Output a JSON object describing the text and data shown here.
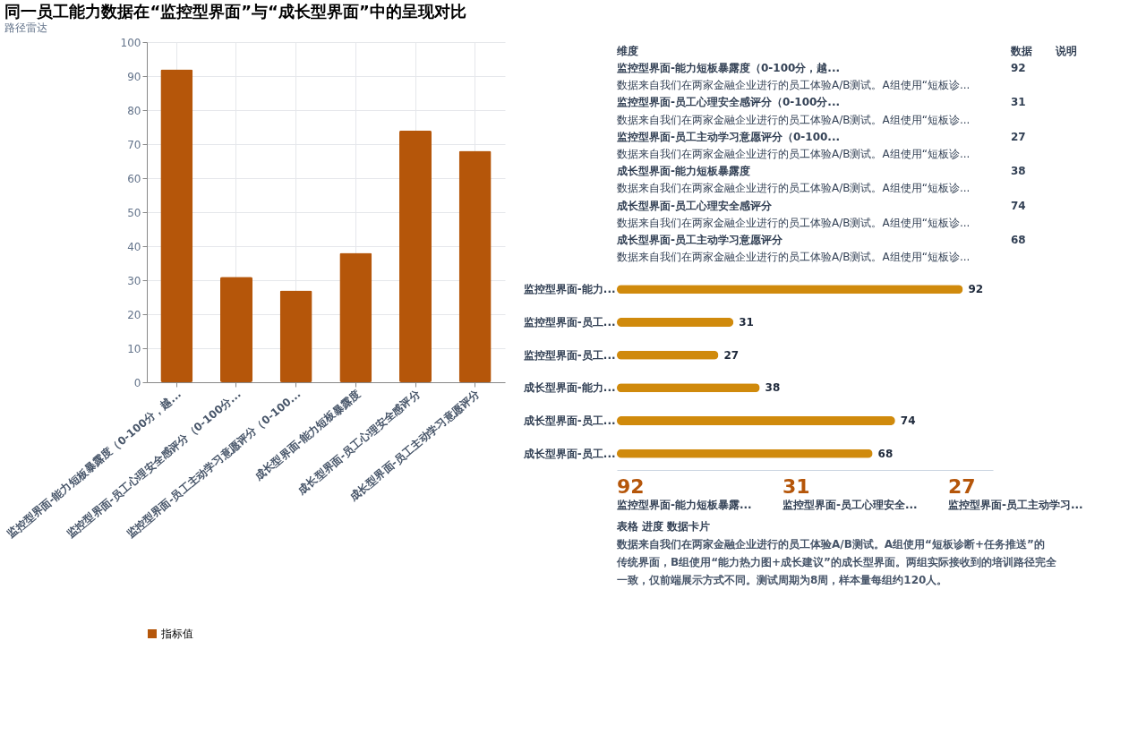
{
  "chart_data": [
    {
      "type": "bar",
      "title": "同一员工能力数据在“监控型界面”与“成长型界面”中的呈现对比",
      "categories": [
        "监控型界面-能力短板暴露度（0-100分，越...",
        "监控型界面-员工心理安全感评分（0-100分...",
        "监控型界面-员工主动学习意愿评分（0-100...",
        "成长型界面-能力短板暴露度",
        "成长型界面-员工心理安全感评分",
        "成长型界面-员工主动学习意愿评分"
      ],
      "series": [
        {
          "name": "指标值",
          "color": "#b5560a",
          "values": [
            92,
            31,
            27,
            38,
            74,
            68
          ]
        }
      ],
      "ylim": [
        0,
        100
      ],
      "yticks": [
        0,
        10,
        20,
        30,
        40,
        50,
        60,
        70,
        80,
        90,
        100
      ],
      "grid": true,
      "legend": "bottom",
      "annotations": [
        "路径雷达"
      ]
    },
    {
      "type": "other",
      "annotations": [
        "维度",
        "数据",
        "说明",
        "监控型界面-能力短板暴露度（0-100分，越...",
        "92",
        "数据来自我们在两家金融企业进行的员工体验A/B测试。A组使用“短板诊...",
        "监控型界面-员工心理安全感评分（0-100分...",
        "31",
        "数据来自我们在两家金融企业进行的员工体验A/B测试。A组使用“短板诊...",
        "监控型界面-员工主动学习意愿评分（0-100...",
        "27",
        "数据来自我们在两家金融企业进行的员工体验A/B测试。A组使用“短板诊...",
        "成长型界面-能力短板暴露度",
        "38",
        "数据来自我们在两家金融企业进行的员工体验A/B测试。A组使用“短板诊...",
        "成长型界面-员工心理安全感评分",
        "74",
        "数据来自我们在两家金融企业进行的员工体验A/B测试。A组使用“短板诊...",
        "成长型界面-员工主动学习意愿评分",
        "68",
        "数据来自我们在两家金融企业进行的员工体验A/B测试。A组使用“短板诊..."
      ]
    },
    {
      "type": "bar",
      "orientation": "horizontal",
      "categories": [
        "监控型界面-能力...",
        "监控型界面-员工...",
        "监控型界面-员工...",
        "成长型界面-能力...",
        "成长型界面-员工...",
        "成长型界面-员工..."
      ],
      "series": [
        {
          "color": "#d08a0c",
          "values": [
            92,
            31,
            27,
            38,
            74,
            68
          ]
        }
      ],
      "xlim": [
        0,
        100
      ],
      "tick_labels": "y",
      "data_labels": true
    },
    {
      "type": "other",
      "annotations": [
        "92",
        "监控型界面-能力短板暴露...",
        "31",
        "监控型界面-员工心理安全...",
        "27",
        "监控型界面-员工主动学习...",
        "表格",
        "进度",
        "数据卡片",
        "数据来自我们在两家金融企业进行的员工体验A/B测试。A组使用“短板诊断+任务推送”的传统界面，B组使用“能力热力图+成长建议”的成长型界面。两组实际接收到的培训路径完全一致，仅前端展示方式不同。测试周期为8周，样本量每组约120人。"
      ]
    }
  ]
}
